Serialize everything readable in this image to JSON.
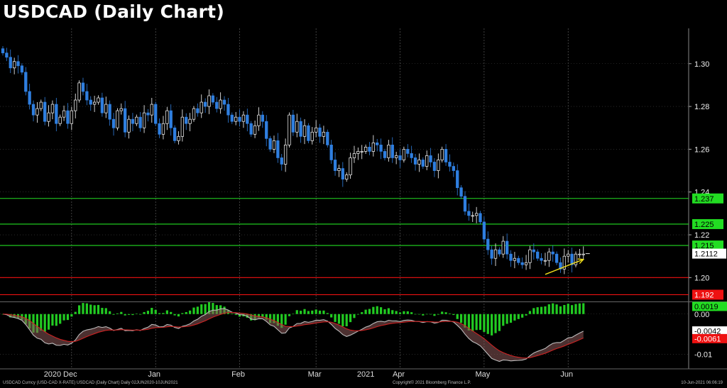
{
  "title": "USDCAD (Daily Chart)",
  "footer": {
    "left": "USDCAD Curncy (USD-CAD X-RATE) USDCAD (Daily Chart)  Daily 02JUN2020-10JUN2021",
    "center": "Copyright© 2021 Bloomberg Finance L.P.",
    "right": "10-Jun-2021 06:06:19"
  },
  "colors": {
    "background": "#000000",
    "up_candle": "#ffffff",
    "down_candle": "#2f7fe0",
    "resistance": "#22dd22",
    "support": "#ee1111",
    "trend_arrow": "#f2e01c",
    "histogram": "#22cc22",
    "macd": "#bbbbbb",
    "signal": "#cc2222"
  },
  "chart_data": [
    {
      "type": "candlestick",
      "title": "USDCAD (Daily Chart)",
      "x_labels": [
        {
          "label": "Dec",
          "index": 18
        },
        {
          "label": "Jan",
          "index": 40
        },
        {
          "label": "Feb",
          "index": 62
        },
        {
          "label": "Mar",
          "index": 82
        },
        {
          "label": "Apr",
          "index": 104
        },
        {
          "label": "May",
          "index": 126
        },
        {
          "label": "Jun",
          "index": 148
        }
      ],
      "year_labels": [
        {
          "label": "2020",
          "index": 13
        },
        {
          "label": "2021",
          "index": 95
        }
      ],
      "ylim": [
        1.1895,
        1.3165
      ],
      "yticks": [
        "1.20",
        "1.22",
        "1.24",
        "1.26",
        "1.28",
        "1.30"
      ],
      "ytick_values": [
        1.2,
        1.22,
        1.24,
        1.26,
        1.28,
        1.3
      ],
      "close_values": [
        1.305,
        1.303,
        1.298,
        1.301,
        1.299,
        1.296,
        1.287,
        1.281,
        1.276,
        1.279,
        1.282,
        1.273,
        1.277,
        1.281,
        1.272,
        1.275,
        1.278,
        1.272,
        1.278,
        1.283,
        1.291,
        1.287,
        1.283,
        1.281,
        1.282,
        1.284,
        1.277,
        1.281,
        1.274,
        1.27,
        1.278,
        1.279,
        1.268,
        1.274,
        1.272,
        1.275,
        1.27,
        1.277,
        1.276,
        1.281,
        1.272,
        1.267,
        1.272,
        1.278,
        1.27,
        1.264,
        1.266,
        1.275,
        1.272,
        1.274,
        1.279,
        1.277,
        1.282,
        1.28,
        1.285,
        1.282,
        1.279,
        1.283,
        1.281,
        1.276,
        1.273,
        1.275,
        1.273,
        1.276,
        1.272,
        1.267,
        1.271,
        1.276,
        1.273,
        1.265,
        1.26,
        1.264,
        1.256,
        1.253,
        1.262,
        1.276,
        1.268,
        1.273,
        1.266,
        1.271,
        1.264,
        1.268,
        1.27,
        1.266,
        1.268,
        1.262,
        1.255,
        1.25,
        1.251,
        1.246,
        1.248,
        1.256,
        1.258,
        1.259,
        1.259,
        1.261,
        1.259,
        1.263,
        1.262,
        1.259,
        1.256,
        1.262,
        1.256,
        1.257,
        1.255,
        1.26,
        1.258,
        1.256,
        1.253,
        1.255,
        1.252,
        1.257,
        1.254,
        1.25,
        1.255,
        1.26,
        1.254,
        1.252,
        1.25,
        1.242,
        1.238,
        1.231,
        1.229,
        1.229,
        1.23,
        1.226,
        1.218,
        1.213,
        1.209,
        1.213,
        1.211,
        1.217,
        1.211,
        1.208,
        1.209,
        1.207,
        1.206,
        1.207,
        1.213,
        1.212,
        1.209,
        1.208,
        1.208,
        1.212,
        1.211,
        1.207,
        1.204,
        1.21,
        1.211,
        1.206,
        1.211,
        1.211,
        1.211
      ],
      "last_price": "1.2112",
      "levels": [
        {
          "label": "1.237",
          "value": 1.237,
          "kind": "resistance"
        },
        {
          "label": "1.225",
          "value": 1.225,
          "kind": "resistance"
        },
        {
          "label": "1.215",
          "value": 1.215,
          "kind": "resistance"
        },
        {
          "label": "",
          "value": 1.2,
          "kind": "support"
        },
        {
          "label": "1.192",
          "value": 1.192,
          "kind": "support"
        }
      ],
      "trend_arrow": {
        "from": {
          "index": 142,
          "value": 1.2015
        },
        "to": {
          "index": 152,
          "value": 1.2085
        }
      }
    },
    {
      "type": "macd",
      "ylim": [
        -0.0122,
        0.0026
      ],
      "yticks": [
        "0.00",
        "-0.01"
      ],
      "ytick_values": [
        0.0,
        -0.01
      ],
      "value_labels": [
        {
          "label": "0.0019",
          "value": 0.0019,
          "kind": "histogram"
        },
        {
          "label": "-0.0042",
          "value": -0.0042,
          "kind": "macd"
        },
        {
          "label": "-0.0061",
          "value": -0.0061,
          "kind": "signal"
        }
      ]
    }
  ]
}
